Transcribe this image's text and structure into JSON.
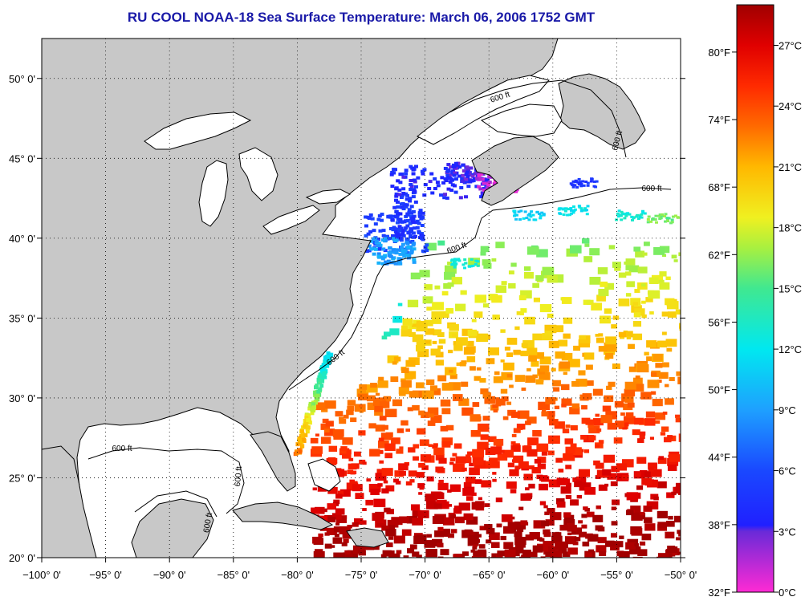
{
  "title": "RU COOL  NOAA-18  Sea Surface Temperature:  March 06, 2006 1752 GMT",
  "colors": {
    "title": "#1a1aa8",
    "land": "#c8c8c8",
    "ocean": "#ffffff",
    "coast": "#000000"
  },
  "map": {
    "lon_range": [
      -100,
      -50
    ],
    "lat_range": [
      20,
      52.5
    ],
    "lon_ticks": [
      {
        "value": -100,
        "label": "−100° 0'"
      },
      {
        "value": -95,
        "label": "−95° 0'"
      },
      {
        "value": -90,
        "label": "−90° 0'"
      },
      {
        "value": -85,
        "label": "−85° 0'"
      },
      {
        "value": -80,
        "label": "−80° 0'"
      },
      {
        "value": -75,
        "label": "−75° 0'"
      },
      {
        "value": -70,
        "label": "−70° 0'"
      },
      {
        "value": -65,
        "label": "−65° 0'"
      },
      {
        "value": -60,
        "label": "−60° 0'"
      },
      {
        "value": -55,
        "label": "−55° 0'"
      },
      {
        "value": -50,
        "label": "−50° 0'"
      }
    ],
    "lat_ticks": [
      {
        "value": 20,
        "label": "20° 0'"
      },
      {
        "value": 25,
        "label": "25° 0'"
      },
      {
        "value": 30,
        "label": "30° 0'"
      },
      {
        "value": 35,
        "label": "35° 0'"
      },
      {
        "value": 40,
        "label": "40° 0'"
      },
      {
        "value": 45,
        "label": "45° 0'"
      },
      {
        "value": 50,
        "label": "50° 0'"
      }
    ],
    "grid": "dotted",
    "isobath_label": "600 ft"
  },
  "colorbar": {
    "min_c": 0,
    "max_c": 29,
    "celsius_ticks": [
      {
        "value": 0,
        "label": "0°C"
      },
      {
        "value": 3,
        "label": "3°C"
      },
      {
        "value": 6,
        "label": "6°C"
      },
      {
        "value": 9,
        "label": "9°C"
      },
      {
        "value": 12,
        "label": "12°C"
      },
      {
        "value": 15,
        "label": "15°C"
      },
      {
        "value": 18,
        "label": "18°C"
      },
      {
        "value": 21,
        "label": "21°C"
      },
      {
        "value": 24,
        "label": "24°C"
      },
      {
        "value": 27,
        "label": "27°C"
      }
    ],
    "fahrenheit_ticks": [
      {
        "value": 32,
        "label": "32°F"
      },
      {
        "value": 38,
        "label": "38°F"
      },
      {
        "value": 44,
        "label": "44°F"
      },
      {
        "value": 50,
        "label": "50°F"
      },
      {
        "value": 56,
        "label": "56°F"
      },
      {
        "value": 62,
        "label": "62°F"
      },
      {
        "value": 68,
        "label": "68°F"
      },
      {
        "value": 74,
        "label": "74°F"
      },
      {
        "value": 80,
        "label": "80°F"
      }
    ],
    "stops": [
      {
        "c": 0,
        "color": "#ff2ad4"
      },
      {
        "c": 3,
        "color": "#6a2ad8"
      },
      {
        "c": 3.3,
        "color": "#2020ff"
      },
      {
        "c": 6,
        "color": "#1a48ff"
      },
      {
        "c": 9,
        "color": "#1ea0ff"
      },
      {
        "c": 12,
        "color": "#00e8f0"
      },
      {
        "c": 15,
        "color": "#40e890"
      },
      {
        "c": 17,
        "color": "#a8f040"
      },
      {
        "c": 18.5,
        "color": "#f0f020"
      },
      {
        "c": 21,
        "color": "#ffb800"
      },
      {
        "c": 23,
        "color": "#ff6a00"
      },
      {
        "c": 25,
        "color": "#ff2a00"
      },
      {
        "c": 27,
        "color": "#e00000"
      },
      {
        "c": 29,
        "color": "#a00000"
      }
    ]
  }
}
